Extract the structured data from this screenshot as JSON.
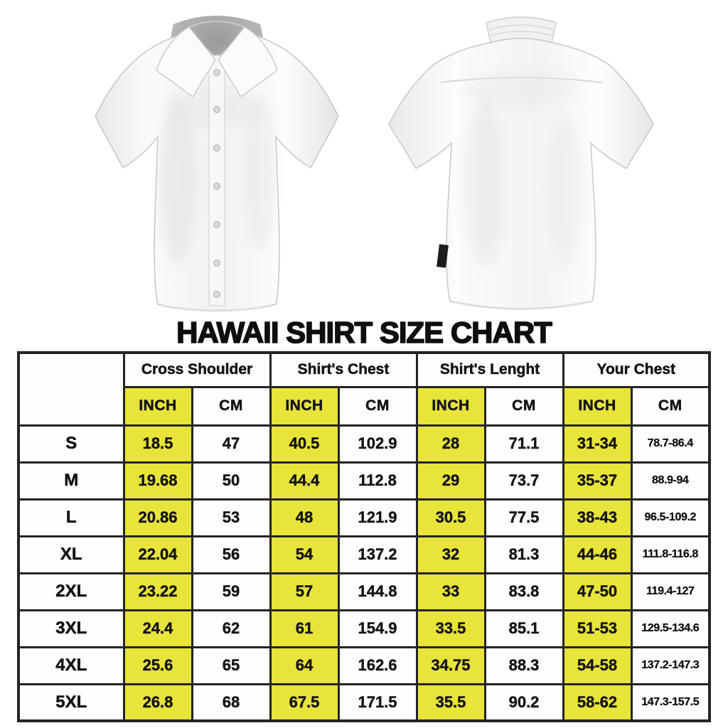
{
  "title": "HAWAII SHIRT SIZE CHART",
  "shirts": {
    "front_alt": "White short-sleeve button-up shirt, front view",
    "back_alt": "White short-sleeve button-up shirt, back view"
  },
  "chart_data": {
    "type": "table",
    "title": "HAWAII SHIRT SIZE CHART",
    "column_groups": [
      "Cross Shoulder",
      "Shirt's Chest",
      "Shirt's Lenght",
      "Your Chest"
    ],
    "unit_row": [
      "INCH",
      "CM",
      "INCH",
      "CM",
      "INCH",
      "CM",
      "INCH",
      "CM"
    ],
    "highlighted_unit": "INCH",
    "rows": [
      {
        "size": "S",
        "values": [
          "18.5",
          "47",
          "40.5",
          "102.9",
          "28",
          "71.1",
          "31-34",
          "78.7-86.4"
        ]
      },
      {
        "size": "M",
        "values": [
          "19.68",
          "50",
          "44.4",
          "112.8",
          "29",
          "73.7",
          "35-37",
          "88.9-94"
        ]
      },
      {
        "size": "L",
        "values": [
          "20.86",
          "53",
          "48",
          "121.9",
          "30.5",
          "77.5",
          "38-43",
          "96.5-109.2"
        ]
      },
      {
        "size": "XL",
        "values": [
          "22.04",
          "56",
          "54",
          "137.2",
          "32",
          "81.3",
          "44-46",
          "111.8-116.8"
        ]
      },
      {
        "size": "2XL",
        "values": [
          "23.22",
          "59",
          "57",
          "144.8",
          "33",
          "83.8",
          "47-50",
          "119.4-127"
        ]
      },
      {
        "size": "3XL",
        "values": [
          "24.4",
          "62",
          "61",
          "154.9",
          "33.5",
          "85.1",
          "51-53",
          "129.5-134.6"
        ]
      },
      {
        "size": "4XL",
        "values": [
          "25.6",
          "65",
          "64",
          "162.6",
          "34.75",
          "88.3",
          "54-58",
          "137.2-147.3"
        ]
      },
      {
        "size": "5XL",
        "values": [
          "26.8",
          "68",
          "67.5",
          "171.5",
          "35.5",
          "90.2",
          "58-62",
          "147.3-157.5"
        ]
      }
    ],
    "layout": {
      "size_col_width": 148,
      "inch_col_width": 96,
      "cm_col_width": 110
    },
    "colors": {
      "highlight_yellow": "#e9e43a",
      "border": "#242424",
      "text": "#141414",
      "background": "#ffffff"
    }
  }
}
